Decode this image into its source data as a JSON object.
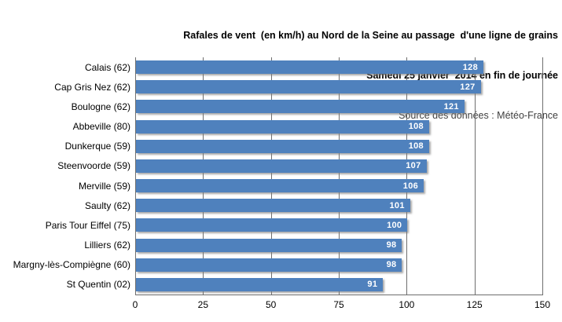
{
  "title": {
    "line1": "Rafales de vent  (en km/h) au Nord de la Seine au passage  d'une ligne de grains",
    "line2": "Samedi 25 janvier  2014 en fin de journée",
    "line3": "Source des données : Météo-France"
  },
  "chart_data": {
    "type": "bar",
    "orientation": "horizontal",
    "categories": [
      "Calais (62)",
      "Cap Gris Nez (62)",
      "Boulogne (62)",
      "Abbeville (80)",
      "Dunkerque (59)",
      "Steenvoorde (59)",
      "Merville (59)",
      "Saulty (62)",
      "Paris Tour Eiffel (75)",
      "Lilliers (62)",
      "Margny-lès-Compiègne (60)",
      "St Quentin (02)"
    ],
    "values": [
      128,
      127,
      121,
      108,
      108,
      107,
      106,
      101,
      100,
      98,
      98,
      91
    ],
    "title": "Rafales de vent (en km/h) au Nord de la Seine au passage d'une ligne de grains",
    "subtitle": "Samedi 25 janvier 2014 en fin de journée",
    "source": "Source des données : Météo-France",
    "xlabel": "",
    "ylabel": "",
    "xlim": [
      0,
      150
    ],
    "xticks": [
      0,
      25,
      50,
      75,
      100,
      125,
      150
    ],
    "grid": true,
    "legend": false,
    "bar_color": "#4F81BD",
    "value_label_color": "#FFFFFF",
    "gridline_color": "#6E6E6E",
    "background_color": "#FFFFFF"
  }
}
